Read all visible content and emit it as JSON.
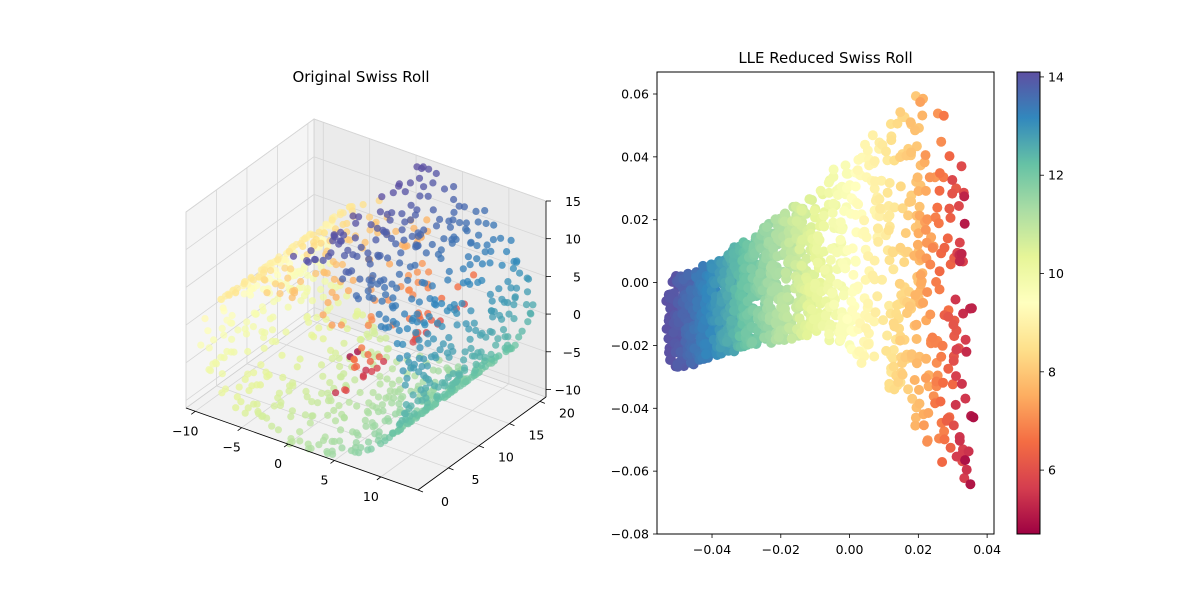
{
  "chart_data": [
    {
      "type": "scatter3d",
      "title": "Original Swiss Roll",
      "colormap": "Spectral",
      "color_range": [
        4.7,
        14.1
      ],
      "x_ticks": [
        -10,
        -5,
        0,
        5,
        10
      ],
      "y_ticks": [
        0,
        5,
        10,
        15,
        20
      ],
      "z_ticks": [
        -10,
        -5,
        0,
        5,
        10,
        15
      ],
      "xlim": [
        -11,
        14
      ],
      "ylim": [
        0,
        21
      ],
      "zlim": [
        -11,
        15
      ],
      "grid": true,
      "points": "swiss roll: x = t·cos(t), z = t·sin(t), y uniform in [0, 21], t in [4.7, 14.1]"
    },
    {
      "type": "scatter",
      "title": "LLE Reduced Swiss Roll",
      "colormap": "Spectral",
      "xlim": [
        -0.056,
        0.042
      ],
      "ylim": [
        -0.08,
        0.067
      ],
      "x_ticks": [
        -0.04,
        -0.02,
        0.0,
        0.02,
        0.04
      ],
      "y_ticks": [
        -0.08,
        -0.06,
        -0.04,
        -0.02,
        0.0,
        0.02,
        0.04,
        0.06
      ],
      "x_tick_labels": [
        "−0.04",
        "−0.02",
        "0.00",
        "0.02",
        "0.04"
      ],
      "y_tick_labels": [
        "−0.08",
        "−0.06",
        "−0.04",
        "−0.02",
        "0.00",
        "0.02",
        "0.04",
        "0.06"
      ],
      "colorbar": {
        "range": [
          4.7,
          14.1
        ],
        "ticks": [
          6,
          8,
          10,
          12,
          14
        ],
        "labels": [
          "6",
          "8",
          "10",
          "12",
          "14"
        ]
      },
      "shape": [
        {
          "t": 4.7,
          "x": 0.036,
          "ylow": -0.073,
          "yhigh": -0.005
        },
        {
          "t": 5.2,
          "x": 0.034,
          "ylow": -0.067,
          "yhigh": 0.03
        },
        {
          "t": 6.0,
          "x": 0.031,
          "ylow": -0.062,
          "yhigh": 0.048
        },
        {
          "t": 7.0,
          "x": 0.025,
          "ylow": -0.053,
          "yhigh": 0.057
        },
        {
          "t": 8.0,
          "x": 0.018,
          "ylow": -0.042,
          "yhigh": 0.06
        },
        {
          "t": 8.8,
          "x": 0.01,
          "ylow": -0.03,
          "yhigh": 0.05
        },
        {
          "t": 9.5,
          "x": 0.0,
          "ylow": -0.021,
          "yhigh": 0.04
        },
        {
          "t": 10.3,
          "x": -0.01,
          "ylow": -0.018,
          "yhigh": 0.028
        },
        {
          "t": 11.2,
          "x": -0.02,
          "ylow": -0.019,
          "yhigh": 0.022
        },
        {
          "t": 12.2,
          "x": -0.03,
          "ylow": -0.02,
          "yhigh": 0.013
        },
        {
          "t": 13.2,
          "x": -0.04,
          "ylow": -0.024,
          "yhigh": 0.006
        },
        {
          "t": 14.1,
          "x": -0.052,
          "ylow": -0.028,
          "yhigh": 0.002
        }
      ]
    }
  ]
}
